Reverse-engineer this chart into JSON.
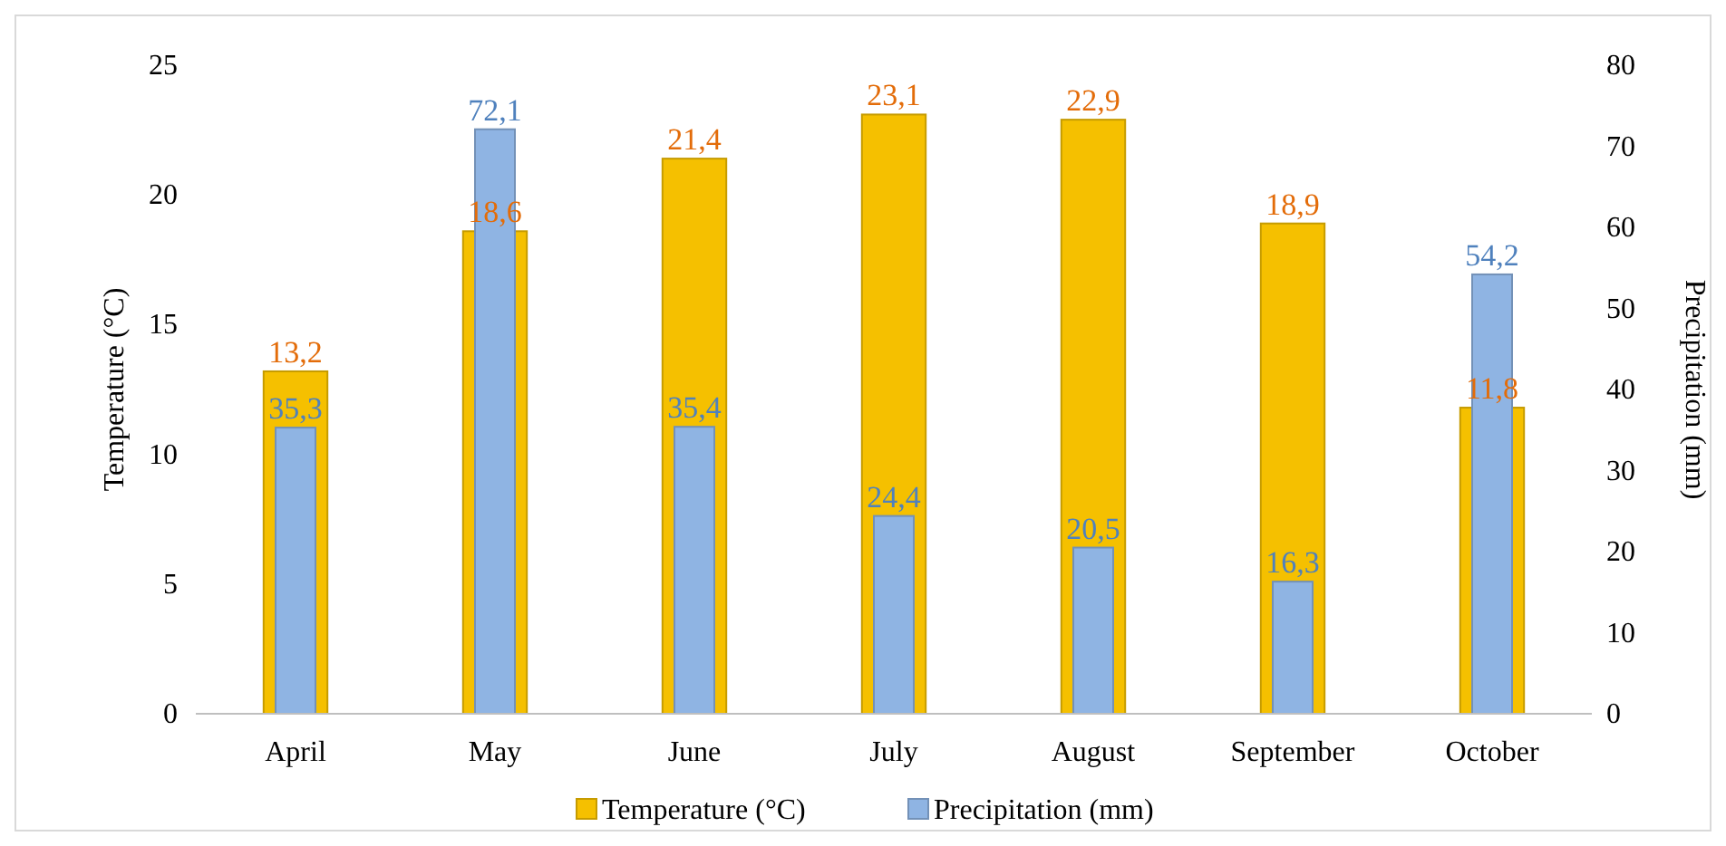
{
  "chart_data": {
    "type": "bar",
    "categories": [
      "April",
      "May",
      "June",
      "July",
      "August",
      "September",
      "October"
    ],
    "series": [
      {
        "name": "Temperature (°C)",
        "color": "#f5c000",
        "values": [
          13.2,
          18.6,
          21.4,
          23.1,
          22.9,
          18.9,
          11.8
        ],
        "value_labels": [
          "13,2",
          "18,6",
          "21,4",
          "23,1",
          "22,9",
          "18,9",
          "11,8"
        ]
      },
      {
        "name": "Precipitation (mm)",
        "color": "#8fb4e3",
        "axis": "y2",
        "values": [
          35.3,
          72.1,
          35.4,
          24.4,
          20.5,
          16.3,
          54.2
        ],
        "value_labels": [
          "35,3",
          "72,1",
          "35,4",
          "24,4",
          "20,5",
          "16,3",
          "54,2"
        ]
      }
    ],
    "ylabel": "Temperature (°C)",
    "y2label": "Precipitation (mm)",
    "ylim": [
      0,
      25
    ],
    "yticks": [
      0,
      5,
      10,
      15,
      20,
      25
    ],
    "y2lim": [
      0,
      80
    ],
    "y2ticks": [
      0,
      10,
      20,
      30,
      40,
      50,
      60,
      70,
      80
    ],
    "legend": "bottom",
    "grid": false
  }
}
